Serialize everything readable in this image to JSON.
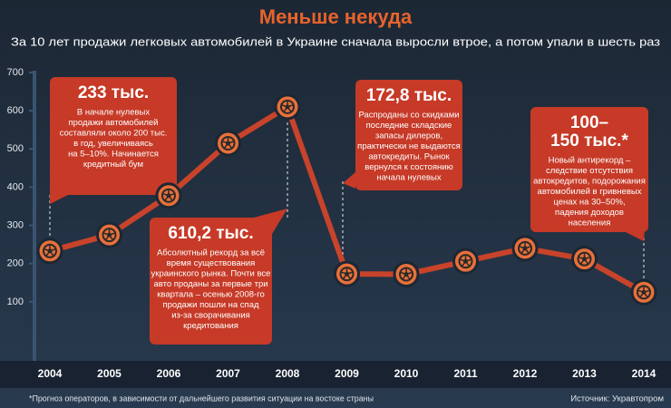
{
  "chart_data": {
    "type": "line",
    "title": "Меньше некуда",
    "subtitle": "За 10 лет продажи легковых автомобилей в Украине сначала выросли втрое, а потом упали в шесть раз",
    "categories": [
      "2004",
      "2005",
      "2006",
      "2007",
      "2008",
      "2009",
      "2010",
      "2011",
      "2012",
      "2013",
      "2014"
    ],
    "values": [
      233,
      275,
      378,
      515,
      610.2,
      172.8,
      172,
      206,
      240,
      212,
      125
    ],
    "color": "#c8432b",
    "ylim": [
      0,
      700
    ],
    "yticks": [
      100,
      200,
      300,
      400,
      500,
      600,
      700
    ],
    "annotations": [
      {
        "heading": [
          "233 тыс."
        ],
        "text": [
          "В начале нулевых",
          "продажи автомобилей",
          "составляли около 200 тыс.",
          "в год, увеличиваясь",
          "на 5–10%. Начинается",
          "кредитный бум"
        ]
      },
      {
        "heading": [
          "610,2 тыс."
        ],
        "text": [
          "Абсолютный рекорд за всё",
          "время существования",
          "украинского рынка. Почти все",
          "авто проданы за первые три",
          "квартала – осенью 2008-го",
          "продажи пошли на спад",
          "из-за сворачивания",
          "кредитования"
        ]
      },
      {
        "heading": [
          "172,8 тыс."
        ],
        "text": [
          "Распроданы со скидками",
          "последние складские",
          "запасы дилеров,",
          "практически не выдаются",
          "автокредиты. Рынок",
          "вернулся к состоянию",
          "начала нулевых"
        ]
      },
      {
        "heading": [
          "100–",
          "150 тыс.*"
        ],
        "text": [
          "Новый антирекорд –",
          "следствие отсутствия",
          "автокредитов, подорожания",
          "автомобилей в гривневых",
          "ценах на 30–50%,",
          "падения доходов",
          "населения"
        ]
      }
    ],
    "footnote": "*Прогноз операторов, в зависимости от дальнейшего развития ситуации на востоке страны",
    "source": "Источник: Укравтопром"
  }
}
